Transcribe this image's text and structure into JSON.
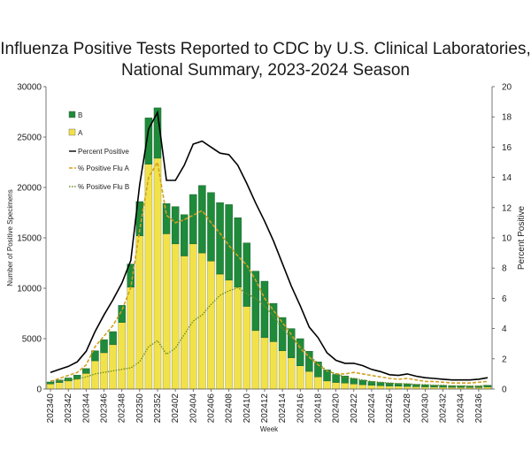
{
  "title": {
    "line1": "Influenza Positive Tests Reported to CDC by U.S. Clinical Laboratories,",
    "line2": "National Summary, 2023-2024 Season"
  },
  "colors": {
    "flu_a": "#f2e24a",
    "flu_b": "#1e8a3a",
    "percent_positive": "#000000",
    "pct_a_line": "#d4a020",
    "pct_b_line": "#6b8e23"
  },
  "chart_data": {
    "type": "bar",
    "stacked": true,
    "xlabel": "Week",
    "ylabel": "Number of Positive Specimens",
    "y2label": "Percent Positive",
    "ylim": [
      0,
      30000
    ],
    "y2lim": [
      0,
      20
    ],
    "yticks": [
      0,
      5000,
      10000,
      15000,
      20000,
      25000,
      30000
    ],
    "y2ticks": [
      0,
      2,
      4,
      6,
      8,
      10,
      12,
      14,
      16,
      18,
      20
    ],
    "xtick_labels": [
      "202340",
      "202342",
      "202344",
      "202346",
      "202348",
      "202350",
      "202352",
      "202402",
      "202404",
      "202406",
      "202408",
      "202410",
      "202412",
      "202414",
      "202416",
      "202418",
      "202420",
      "202422",
      "202424",
      "202426",
      "202428",
      "202430",
      "202432",
      "202434",
      "202436"
    ],
    "categories": [
      "202340",
      "202341",
      "202342",
      "202343",
      "202344",
      "202345",
      "202346",
      "202347",
      "202348",
      "202349",
      "202350",
      "202351",
      "202352",
      "202401",
      "202402",
      "202403",
      "202404",
      "202405",
      "202406",
      "202407",
      "202408",
      "202409",
      "202410",
      "202411",
      "202412",
      "202413",
      "202414",
      "202415",
      "202416",
      "202417",
      "202418",
      "202419",
      "202420",
      "202421",
      "202422",
      "202423",
      "202424",
      "202425",
      "202426",
      "202427",
      "202428",
      "202429",
      "202430",
      "202431",
      "202432",
      "202433",
      "202434",
      "202435",
      "202436",
      "202437"
    ],
    "legend": [
      "B",
      "A",
      "Percent Positive",
      "% Positive Flu A",
      "% Positive Flu B"
    ],
    "legend_position": "top-left",
    "series": [
      {
        "name": "A",
        "kind": "bar",
        "axis": "left",
        "values": [
          500,
          650,
          800,
          1000,
          1550,
          2800,
          3600,
          4400,
          6600,
          10100,
          15200,
          22300,
          22900,
          15400,
          14400,
          13200,
          14400,
          13500,
          12700,
          11400,
          10800,
          10100,
          8200,
          5800,
          5100,
          4700,
          3800,
          3100,
          2300,
          1750,
          1200,
          800,
          650,
          600,
          500,
          430,
          370,
          330,
          300,
          280,
          260,
          230,
          210,
          190,
          180,
          170,
          160,
          150,
          150,
          200
        ]
      },
      {
        "name": "B",
        "kind": "bar",
        "axis": "left",
        "values": [
          200,
          250,
          300,
          380,
          480,
          1000,
          1300,
          1300,
          1700,
          2300,
          3400,
          4600,
          5000,
          3000,
          3700,
          4100,
          4900,
          6700,
          6800,
          7100,
          7500,
          6900,
          6300,
          5900,
          5600,
          3800,
          3300,
          2900,
          2700,
          2000,
          1500,
          1100,
          800,
          700,
          550,
          450,
          380,
          330,
          300,
          280,
          260,
          230,
          210,
          190,
          180,
          170,
          160,
          150,
          150,
          170
        ]
      },
      {
        "name": "Percent Positive",
        "kind": "line",
        "axis": "right",
        "values": [
          1.1,
          1.3,
          1.5,
          1.8,
          2.5,
          3.8,
          4.9,
          5.9,
          7.0,
          8.5,
          13.5,
          17.2,
          18.3,
          13.8,
          13.8,
          14.8,
          16.2,
          16.4,
          16.0,
          15.6,
          15.5,
          14.8,
          13.6,
          12.3,
          11.1,
          9.8,
          8.3,
          6.8,
          5.5,
          4.1,
          3.4,
          2.4,
          1.9,
          1.7,
          1.7,
          1.55,
          1.3,
          1.15,
          0.95,
          0.9,
          1.0,
          0.85,
          0.75,
          0.7,
          0.65,
          0.6,
          0.6,
          0.6,
          0.65,
          0.75
        ]
      },
      {
        "name": "% Positive Flu A",
        "kind": "line",
        "axis": "right",
        "values": [
          0.5,
          0.7,
          0.9,
          1.1,
          1.6,
          2.8,
          3.5,
          4.2,
          5.2,
          6.7,
          10.5,
          14.0,
          15.0,
          11.5,
          11.0,
          11.2,
          11.5,
          11.8,
          11.0,
          10.3,
          9.5,
          8.8,
          8.2,
          7.2,
          6.0,
          5.2,
          4.4,
          3.6,
          2.7,
          2.1,
          1.6,
          1.2,
          1.0,
          1.0,
          1.1,
          1.0,
          0.9,
          0.8,
          0.7,
          0.65,
          0.7,
          0.6,
          0.5,
          0.5,
          0.45,
          0.4,
          0.4,
          0.4,
          0.45,
          0.5
        ]
      },
      {
        "name": "% Positive Flu B",
        "kind": "line",
        "axis": "right",
        "values": [
          0.5,
          0.55,
          0.6,
          0.65,
          0.8,
          1.0,
          1.1,
          1.2,
          1.3,
          1.4,
          1.8,
          2.8,
          3.2,
          2.3,
          2.7,
          3.6,
          4.5,
          4.9,
          5.6,
          6.2,
          6.5,
          6.7,
          6.3,
          6.0,
          5.5,
          4.8,
          4.0,
          3.4,
          2.9,
          2.2,
          1.7,
          1.2,
          1.0,
          0.8,
          0.7,
          0.6,
          0.5,
          0.45,
          0.4,
          0.35,
          0.35,
          0.3,
          0.3,
          0.25,
          0.25,
          0.2,
          0.2,
          0.2,
          0.2,
          0.25
        ]
      }
    ]
  }
}
